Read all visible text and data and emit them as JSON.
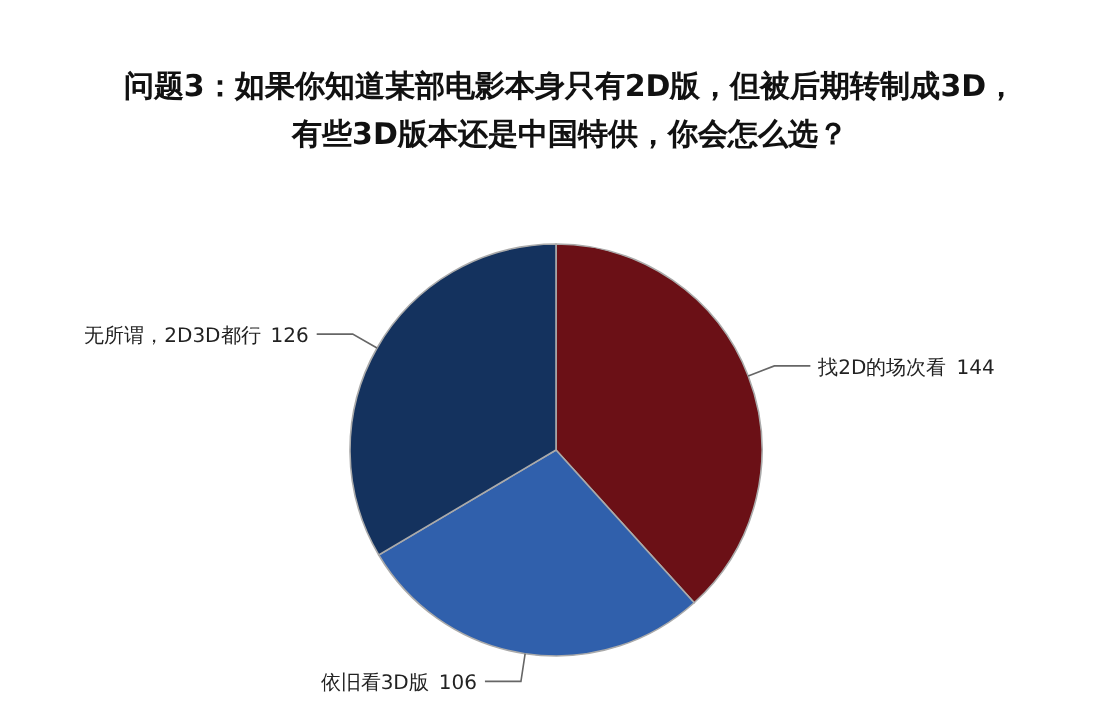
{
  "chart_data": {
    "type": "pie",
    "title": "问题3：如果你知道某部电影本身只有2D版，但被后期转制成3D，有些3D版本还是中国特供，你会怎么选？",
    "categories": [
      "找2D的场次看",
      "依旧看3D版",
      "无所谓，2D3D都行"
    ],
    "values": [
      144,
      106,
      126
    ],
    "colors": [
      "#6b1016",
      "#3060ac",
      "#14325e"
    ],
    "data_labels": true
  }
}
